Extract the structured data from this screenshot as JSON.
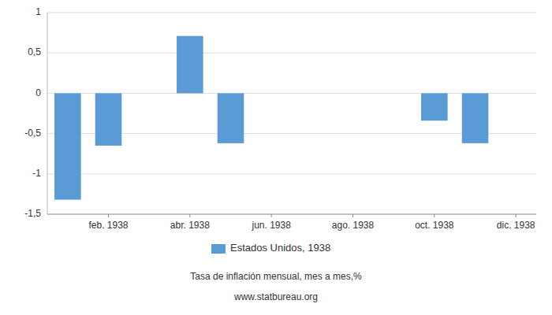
{
  "chart_data": {
    "type": "bar",
    "subtitle": "Tasa de inflación mensual, mes a mes,%",
    "annotations": [
      "www.statbureau.org"
    ],
    "categories": [
      null,
      "feb. 1938",
      null,
      "abr. 1938",
      null,
      "jun. 1938",
      null,
      "ago. 1938",
      null,
      "oct. 1938",
      null,
      "dic. 1938"
    ],
    "series": [
      {
        "name": "Estados Unidos, 1938",
        "color": "#5b9bd5",
        "values": [
          -1.32,
          -0.65,
          0.0,
          0.71,
          -0.62,
          0.0,
          0.0,
          0.0,
          0.0,
          -0.34,
          -0.62,
          0.0
        ]
      }
    ],
    "ylim": [
      -1.5,
      1.0
    ],
    "yticks": [
      {
        "value": -1.5,
        "label": "-1,5"
      },
      -1,
      {
        "value": -0.5,
        "label": "-0,5"
      },
      0,
      {
        "value": 0.5,
        "label": "0,5"
      },
      1
    ],
    "grid": true,
    "legend": "bottom"
  }
}
